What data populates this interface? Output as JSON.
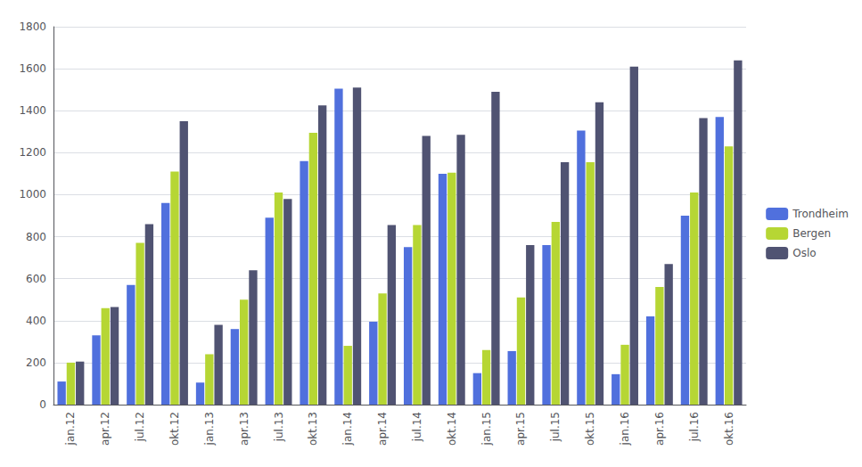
{
  "chart_data": {
    "type": "bar",
    "categories": [
      "jan.12",
      "apr.12",
      "jul.12",
      "okt.12",
      "jan.13",
      "apr.13",
      "jul.13",
      "okt.13",
      "jan.14",
      "apr.14",
      "jul.14",
      "okt.14",
      "jan.15",
      "apr.15",
      "jul.15",
      "okt.15",
      "jan.16",
      "apr.16",
      "jul.16",
      "okt.16"
    ],
    "series": [
      {
        "name": "Trondheim",
        "values": [
          110,
          330,
          570,
          960,
          105,
          360,
          890,
          1160,
          1505,
          395,
          750,
          1100,
          150,
          255,
          760,
          1305,
          145,
          420,
          900,
          1370
        ]
      },
      {
        "name": "Bergen",
        "values": [
          200,
          460,
          770,
          1110,
          240,
          500,
          1010,
          1295,
          280,
          530,
          855,
          1105,
          260,
          510,
          870,
          1155,
          285,
          560,
          1010,
          1230
        ]
      },
      {
        "name": "Oslo",
        "values": [
          205,
          465,
          860,
          1350,
          380,
          640,
          980,
          1425,
          1510,
          855,
          1280,
          1285,
          1490,
          760,
          1155,
          1440,
          1610,
          670,
          1365,
          1640
        ]
      }
    ],
    "ylim": [
      0,
      1800
    ],
    "yticks": [
      0,
      200,
      400,
      600,
      800,
      1000,
      1200,
      1400,
      1600,
      1800
    ],
    "grid": true,
    "legend": "right"
  }
}
